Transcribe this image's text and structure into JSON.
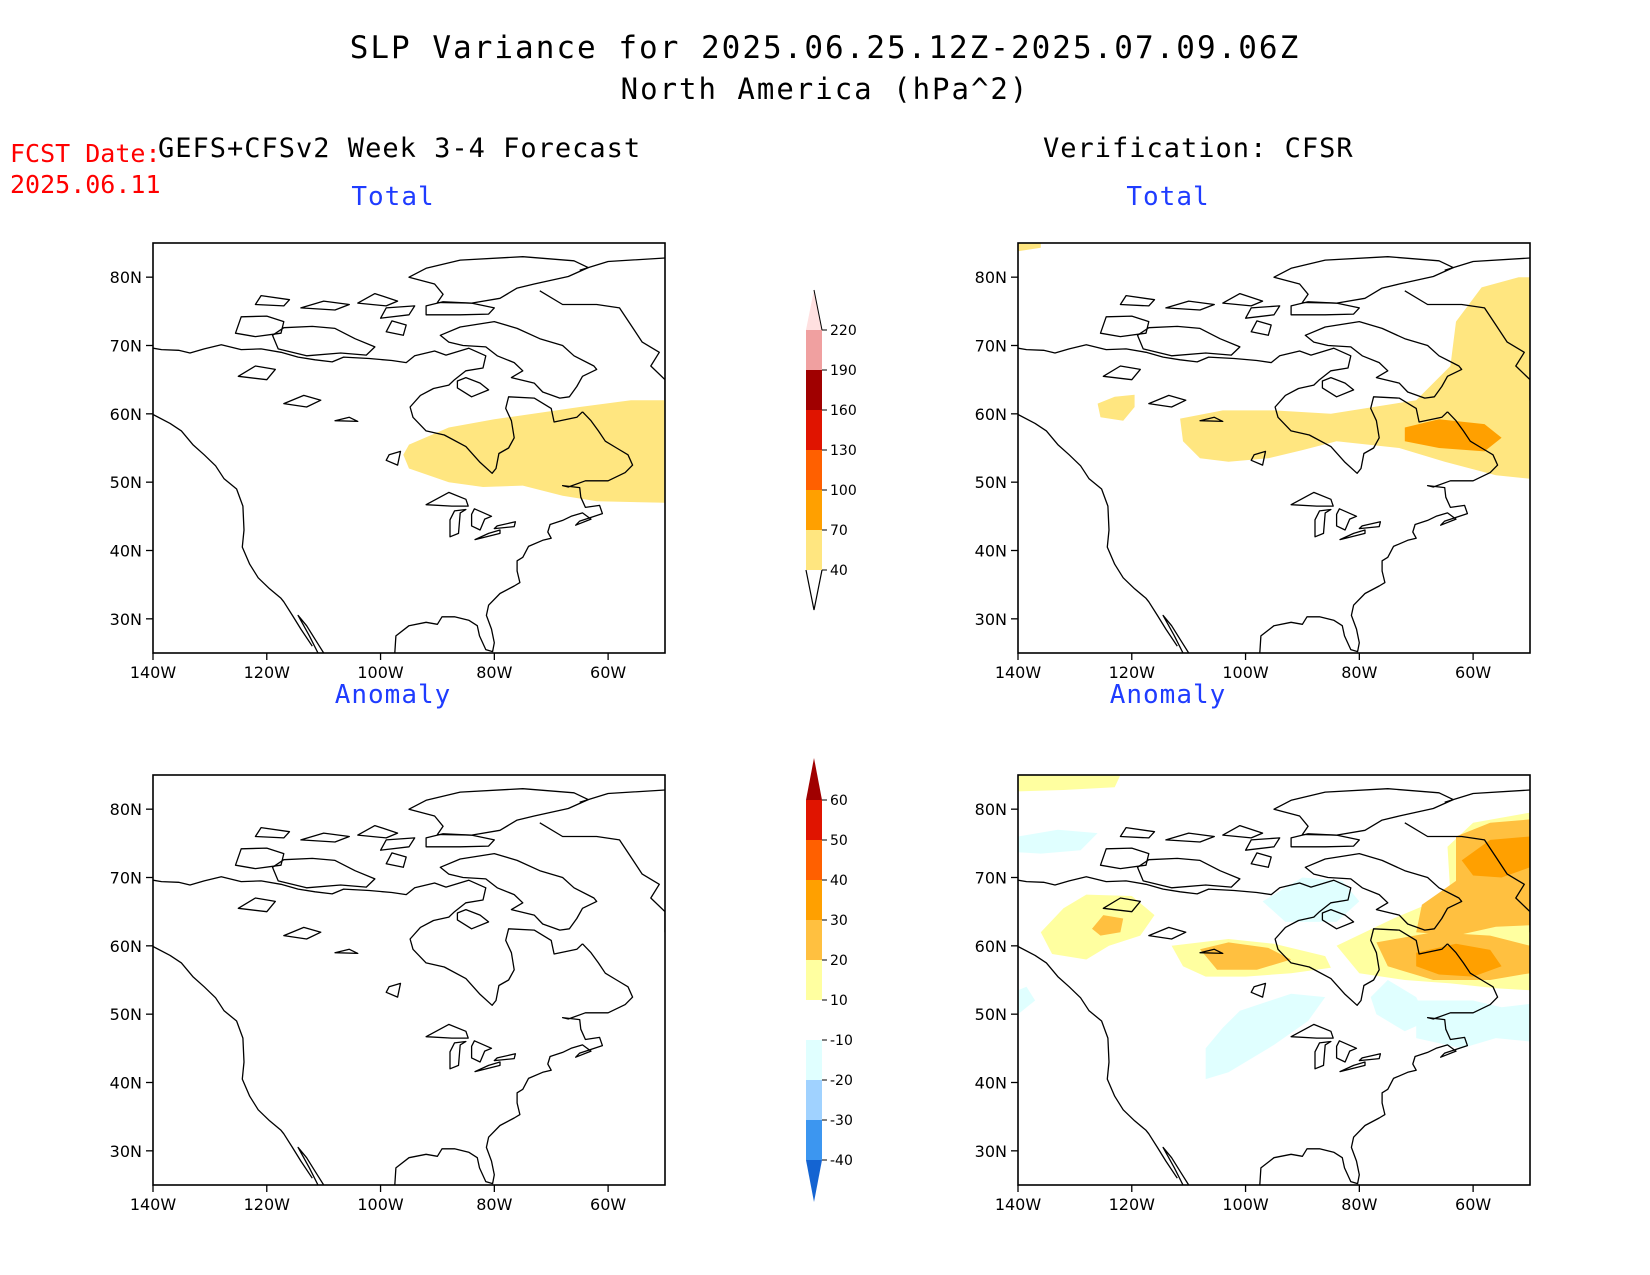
{
  "header": {
    "title_line1": "SLP Variance for 2025.06.25.12Z-2025.07.09.06Z",
    "title_line2": "North America (hPa^2)"
  },
  "fcst_date": {
    "label": "FCST Date:",
    "value": "2025.06.11"
  },
  "columns": {
    "left_title": "GEFS+CFSv2 Week 3-4 Forecast",
    "right_title": "Verification: CFSR"
  },
  "panels": {
    "forecast_total": {
      "title": "Total"
    },
    "verif_total": {
      "title": "Total"
    },
    "forecast_anomaly": {
      "title": "Anomaly"
    },
    "verif_anomaly": {
      "title": "Anomaly"
    }
  },
  "axes": {
    "lat_labels": [
      "80N",
      "70N",
      "60N",
      "50N",
      "40N",
      "30N"
    ],
    "lon_labels": [
      "140W",
      "120W",
      "100W",
      "80W",
      "60W"
    ]
  },
  "colorbar_total": {
    "levels": [
      "40",
      "70",
      "100",
      "130",
      "160",
      "190",
      "220"
    ],
    "colors": [
      "#ffe680",
      "#ffa000",
      "#ff6000",
      "#e01400",
      "#a00000",
      "#f0a0a0",
      "#ffe0e0"
    ]
  },
  "colorbar_anomaly": {
    "levels": [
      "60",
      "50",
      "40",
      "30",
      "20",
      "10",
      "-10",
      "-20",
      "-30",
      "-40"
    ],
    "colors": {
      "gt60": "#a00000",
      "50_60": "#e01400",
      "40_50": "#ff6000",
      "30_40": "#ffa000",
      "20_30": "#ffc040",
      "10_20": "#ffffa0",
      "m10_10": "#ffffff",
      "m20_m10": "#e0ffff",
      "m30_m20": "#a0d2ff",
      "m40_m30": "#3c96f0",
      "lt_m40": "#1464d2"
    }
  }
}
